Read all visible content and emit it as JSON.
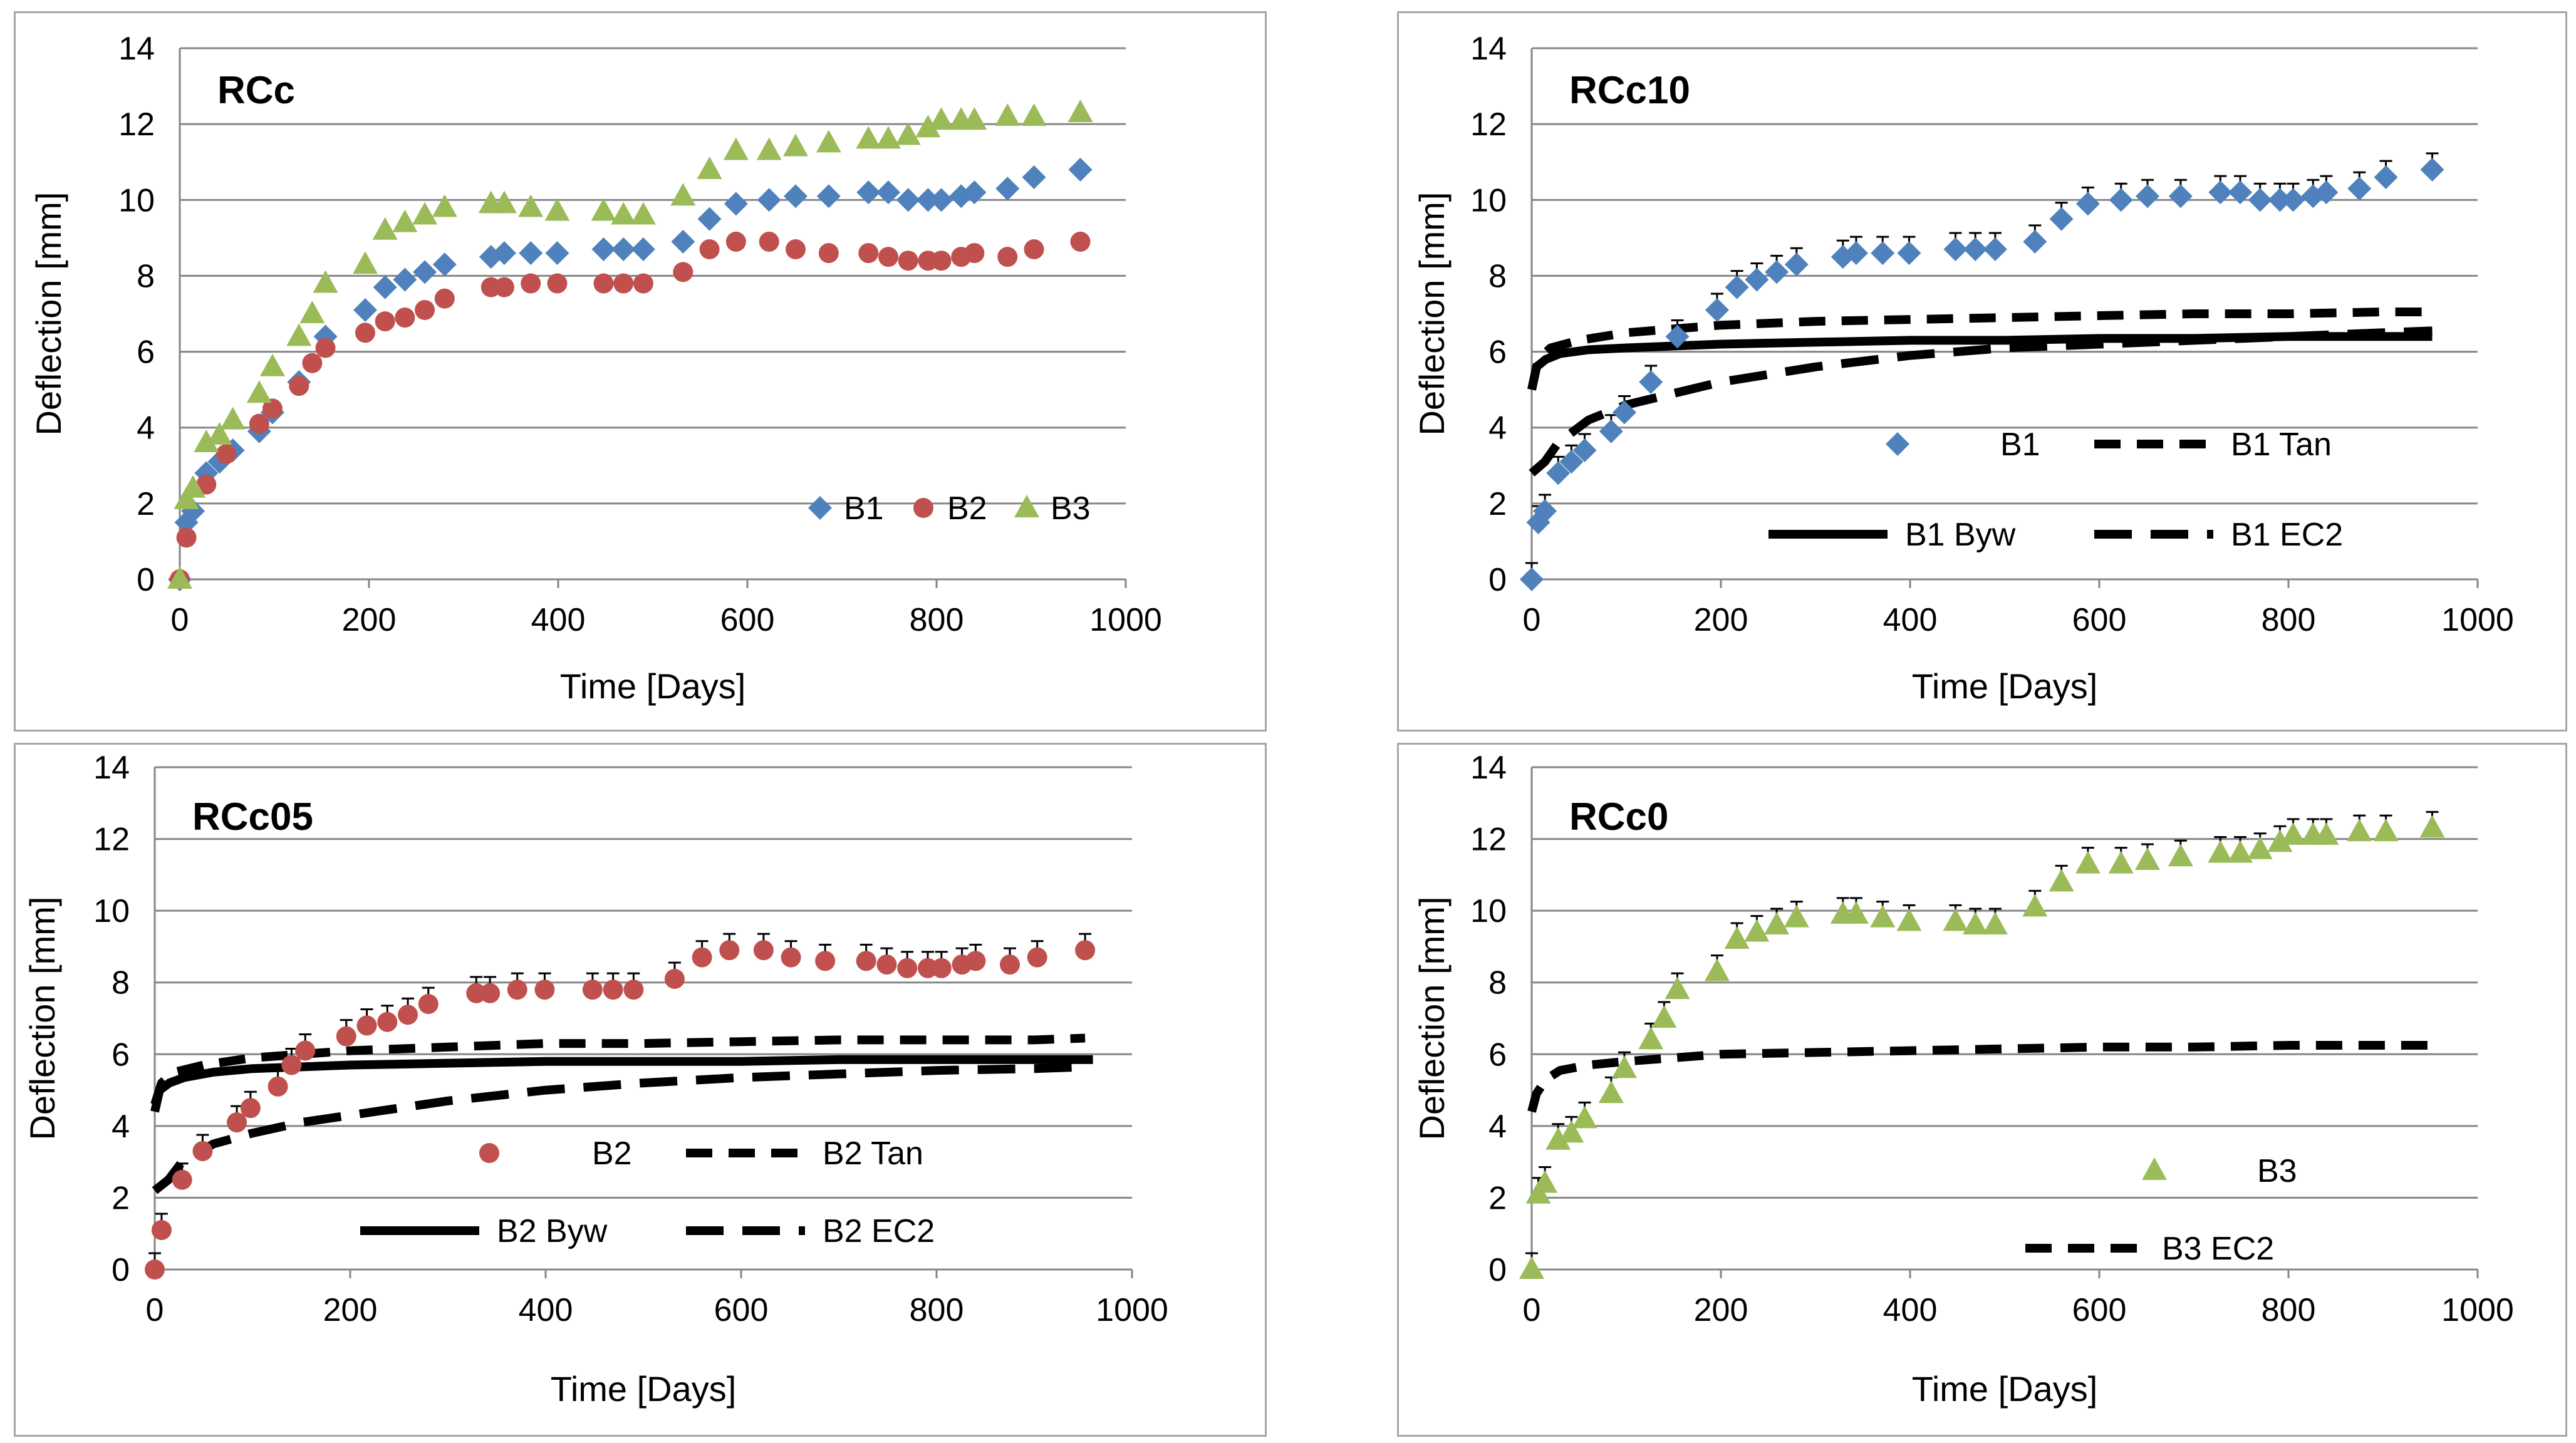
{
  "colors": {
    "B1": "#4f81bd",
    "B2": "#c0504d",
    "B3": "#9bbb59",
    "model": "#000000",
    "grid": "#868686"
  },
  "chart_data": [
    {
      "type": "scatter",
      "title": "RCc",
      "xlabel": "Time [Days]",
      "ylabel": "Deflection [mm]",
      "xlim": [
        0,
        1000
      ],
      "ylim": [
        0,
        14
      ],
      "xticks": [
        "0",
        "200",
        "400",
        "600",
        "800",
        "1000"
      ],
      "yticks": [
        "0",
        "2",
        "4",
        "6",
        "8",
        "10",
        "12",
        "14"
      ],
      "legend_layout": "row",
      "legend": [
        {
          "label": "B1",
          "series": "B1"
        },
        {
          "label": "B2",
          "series": "B2"
        },
        {
          "label": "B3",
          "series": "B3"
        }
      ],
      "series": [
        {
          "name": "B1",
          "kind": "marker",
          "marker": "diamond",
          "color": "B1",
          "x": [
            0,
            7,
            14,
            28,
            42,
            56,
            84,
            98,
            126,
            154,
            196,
            217,
            238,
            259,
            280,
            329,
            343,
            371,
            399,
            448,
            469,
            490,
            532,
            560,
            588,
            623,
            651,
            686,
            728,
            749,
            770,
            791,
            805,
            826,
            840,
            875,
            903,
            952
          ],
          "y": [
            0,
            1.5,
            1.8,
            2.8,
            3.1,
            3.4,
            3.9,
            4.4,
            5.2,
            6.4,
            7.1,
            7.7,
            7.9,
            8.1,
            8.3,
            8.5,
            8.6,
            8.6,
            8.6,
            8.7,
            8.7,
            8.7,
            8.9,
            9.5,
            9.9,
            10.0,
            10.1,
            10.1,
            10.2,
            10.2,
            10.0,
            10.0,
            10.0,
            10.1,
            10.2,
            10.3,
            10.6,
            10.8
          ]
        },
        {
          "name": "B2",
          "kind": "marker",
          "marker": "circle",
          "color": "B2",
          "x": [
            0,
            7,
            28,
            49,
            84,
            98,
            126,
            140,
            154,
            196,
            217,
            238,
            259,
            280,
            329,
            343,
            371,
            399,
            448,
            469,
            490,
            532,
            560,
            588,
            623,
            651,
            686,
            728,
            749,
            770,
            791,
            805,
            826,
            840,
            875,
            903,
            952
          ],
          "y": [
            0,
            1.1,
            2.5,
            3.3,
            4.1,
            4.5,
            5.1,
            5.7,
            6.1,
            6.5,
            6.8,
            6.9,
            7.1,
            7.4,
            7.7,
            7.7,
            7.8,
            7.8,
            7.8,
            7.8,
            7.8,
            8.1,
            8.7,
            8.9,
            8.9,
            8.7,
            8.6,
            8.6,
            8.5,
            8.4,
            8.4,
            8.4,
            8.5,
            8.6,
            8.5,
            8.7,
            8.9
          ]
        },
        {
          "name": "B3",
          "kind": "marker",
          "marker": "triangle",
          "color": "B3",
          "x": [
            0,
            7,
            14,
            28,
            42,
            56,
            84,
            98,
            126,
            140,
            154,
            196,
            217,
            238,
            259,
            280,
            329,
            343,
            371,
            399,
            448,
            469,
            490,
            532,
            560,
            588,
            623,
            651,
            686,
            728,
            749,
            770,
            791,
            805,
            826,
            840,
            875,
            903,
            952
          ],
          "y": [
            0,
            2.1,
            2.4,
            3.6,
            3.8,
            4.2,
            4.9,
            5.6,
            6.4,
            7.0,
            7.8,
            8.3,
            9.2,
            9.4,
            9.6,
            9.8,
            9.9,
            9.9,
            9.8,
            9.7,
            9.7,
            9.6,
            9.6,
            10.1,
            10.8,
            11.3,
            11.3,
            11.4,
            11.5,
            11.6,
            11.6,
            11.7,
            11.9,
            12.1,
            12.1,
            12.1,
            12.2,
            12.2,
            12.3
          ]
        }
      ]
    },
    {
      "type": "scatter",
      "title": "RCc10",
      "xlabel": "Time [Days]",
      "ylabel": "Deflection [mm]",
      "xlim": [
        0,
        1000
      ],
      "ylim": [
        0,
        14
      ],
      "xticks": [
        "0",
        "200",
        "400",
        "600",
        "800",
        "1000"
      ],
      "yticks": [
        "0",
        "2",
        "4",
        "6",
        "8",
        "10",
        "12",
        "14"
      ],
      "legend_layout": "grid2",
      "legend": [
        {
          "label": "B1",
          "series": "B1"
        },
        {
          "label": "B1 Tan",
          "series": "B1 Tan"
        },
        {
          "label": "B1 Byw",
          "series": "B1 Byw"
        },
        {
          "label": "B1 EC2",
          "series": "B1 EC2"
        }
      ],
      "series": [
        {
          "name": "B1",
          "kind": "marker",
          "marker": "diamond",
          "color": "B1",
          "errbar": true,
          "x": [
            0,
            7,
            14,
            28,
            42,
            56,
            84,
            98,
            126,
            154,
            196,
            217,
            238,
            259,
            280,
            329,
            343,
            371,
            399,
            448,
            469,
            490,
            532,
            560,
            588,
            623,
            651,
            686,
            728,
            749,
            770,
            791,
            805,
            826,
            840,
            875,
            903,
            952
          ],
          "y": [
            0,
            1.5,
            1.8,
            2.8,
            3.1,
            3.4,
            3.9,
            4.4,
            5.2,
            6.4,
            7.1,
            7.7,
            7.9,
            8.1,
            8.3,
            8.5,
            8.6,
            8.6,
            8.6,
            8.7,
            8.7,
            8.7,
            8.9,
            9.5,
            9.9,
            10.0,
            10.1,
            10.1,
            10.2,
            10.2,
            10.0,
            10.0,
            10.0,
            10.1,
            10.2,
            10.3,
            10.6,
            10.8
          ]
        },
        {
          "name": "B1 Tan",
          "kind": "line",
          "style": "dash",
          "color": "model",
          "x": [
            0,
            7,
            20,
            50,
            100,
            150,
            200,
            300,
            400,
            500,
            600,
            700,
            800,
            900,
            952
          ],
          "y": [
            5.0,
            5.8,
            6.1,
            6.3,
            6.5,
            6.6,
            6.7,
            6.8,
            6.85,
            6.9,
            6.95,
            7.0,
            7.0,
            7.05,
            7.05
          ]
        },
        {
          "name": "B1 Byw",
          "kind": "line",
          "style": "solid",
          "color": "model",
          "x": [
            0,
            5,
            15,
            30,
            60,
            100,
            200,
            300,
            400,
            500,
            600,
            700,
            800,
            900,
            952
          ],
          "y": [
            5.0,
            5.6,
            5.8,
            5.95,
            6.05,
            6.1,
            6.2,
            6.25,
            6.3,
            6.3,
            6.35,
            6.35,
            6.4,
            6.4,
            6.4
          ]
        },
        {
          "name": "B1 EC2",
          "kind": "line",
          "style": "dashlong",
          "color": "model",
          "x": [
            0,
            14,
            28,
            60,
            100,
            150,
            200,
            300,
            400,
            500,
            600,
            700,
            800,
            900,
            952
          ],
          "y": [
            2.8,
            3.1,
            3.6,
            4.2,
            4.6,
            4.9,
            5.2,
            5.6,
            5.9,
            6.1,
            6.2,
            6.3,
            6.4,
            6.5,
            6.55
          ]
        }
      ]
    },
    {
      "type": "scatter",
      "title": "RCc05",
      "xlabel": "Time [Days]",
      "ylabel": "Deflection [mm]",
      "xlim": [
        0,
        1000
      ],
      "ylim": [
        0,
        14
      ],
      "xticks": [
        "0",
        "200",
        "400",
        "600",
        "800",
        "1000"
      ],
      "yticks": [
        "0",
        "2",
        "4",
        "6",
        "8",
        "10",
        "12",
        "14"
      ],
      "legend_layout": "grid2",
      "legend": [
        {
          "label": "B2",
          "series": "B2"
        },
        {
          "label": "B2 Tan",
          "series": "B2 Tan"
        },
        {
          "label": "B2 Byw",
          "series": "B2 Byw"
        },
        {
          "label": "B2 EC2",
          "series": "B2 EC2"
        }
      ],
      "series": [
        {
          "name": "B2",
          "kind": "marker",
          "marker": "circle",
          "color": "B2",
          "errbar": true,
          "x": [
            0,
            7,
            28,
            49,
            84,
            98,
            126,
            140,
            154,
            196,
            217,
            238,
            259,
            280,
            329,
            343,
            371,
            399,
            448,
            469,
            490,
            532,
            560,
            588,
            623,
            651,
            686,
            728,
            749,
            770,
            791,
            805,
            826,
            840,
            875,
            903,
            952
          ],
          "y": [
            0,
            1.1,
            2.5,
            3.3,
            4.1,
            4.5,
            5.1,
            5.7,
            6.1,
            6.5,
            6.8,
            6.9,
            7.1,
            7.4,
            7.7,
            7.7,
            7.8,
            7.8,
            7.8,
            7.8,
            7.8,
            8.1,
            8.7,
            8.9,
            8.9,
            8.7,
            8.6,
            8.6,
            8.5,
            8.4,
            8.4,
            8.4,
            8.5,
            8.6,
            8.5,
            8.7,
            8.9
          ]
        },
        {
          "name": "B2 Tan",
          "kind": "line",
          "style": "dash",
          "color": "model",
          "x": [
            0,
            7,
            20,
            50,
            100,
            150,
            200,
            300,
            400,
            500,
            600,
            700,
            800,
            900,
            952
          ],
          "y": [
            4.6,
            5.2,
            5.5,
            5.7,
            5.9,
            6.0,
            6.1,
            6.2,
            6.3,
            6.3,
            6.35,
            6.4,
            6.4,
            6.4,
            6.45
          ]
        },
        {
          "name": "B2 Byw",
          "kind": "line",
          "style": "solid",
          "color": "model",
          "x": [
            0,
            5,
            15,
            30,
            60,
            100,
            200,
            300,
            400,
            500,
            600,
            700,
            800,
            900,
            960
          ],
          "y": [
            4.4,
            5.0,
            5.2,
            5.35,
            5.5,
            5.6,
            5.7,
            5.75,
            5.8,
            5.8,
            5.8,
            5.85,
            5.85,
            5.85,
            5.85
          ]
        },
        {
          "name": "B2 EC2",
          "kind": "line",
          "style": "dashlong",
          "color": "model",
          "x": [
            0,
            14,
            28,
            60,
            100,
            150,
            200,
            300,
            400,
            500,
            600,
            700,
            800,
            900,
            952
          ],
          "y": [
            2.2,
            2.5,
            3.0,
            3.5,
            3.8,
            4.1,
            4.3,
            4.7,
            5.0,
            5.2,
            5.35,
            5.45,
            5.55,
            5.6,
            5.65
          ]
        }
      ]
    },
    {
      "type": "scatter",
      "title": "RCc0",
      "xlabel": "Time [Days]",
      "ylabel": "Deflection [mm]",
      "xlim": [
        0,
        1000
      ],
      "ylim": [
        0,
        14
      ],
      "xticks": [
        "0",
        "200",
        "400",
        "600",
        "800",
        "1000"
      ],
      "yticks": [
        "0",
        "2",
        "4",
        "6",
        "8",
        "10",
        "12",
        "14"
      ],
      "legend_layout": "column",
      "legend": [
        {
          "label": "B3",
          "series": "B3"
        },
        {
          "label": "B3 EC2",
          "series": "B3 EC2"
        }
      ],
      "series": [
        {
          "name": "B3",
          "kind": "marker",
          "marker": "triangle",
          "color": "B3",
          "errbar": true,
          "x": [
            0,
            7,
            14,
            28,
            42,
            56,
            84,
            98,
            126,
            140,
            154,
            196,
            217,
            238,
            259,
            280,
            329,
            343,
            371,
            399,
            448,
            469,
            490,
            532,
            560,
            588,
            623,
            651,
            686,
            728,
            749,
            770,
            791,
            805,
            826,
            840,
            875,
            903,
            952
          ],
          "y": [
            0,
            2.1,
            2.4,
            3.6,
            3.8,
            4.2,
            4.9,
            5.6,
            6.4,
            7.0,
            7.8,
            8.3,
            9.2,
            9.4,
            9.6,
            9.8,
            9.9,
            9.9,
            9.8,
            9.7,
            9.7,
            9.6,
            9.6,
            10.1,
            10.8,
            11.3,
            11.3,
            11.4,
            11.5,
            11.6,
            11.6,
            11.7,
            11.9,
            12.1,
            12.1,
            12.1,
            12.2,
            12.2,
            12.3
          ]
        },
        {
          "name": "B3 EC2",
          "kind": "line",
          "style": "dash",
          "color": "model",
          "x": [
            0,
            5,
            15,
            30,
            60,
            100,
            150,
            200,
            300,
            400,
            500,
            600,
            700,
            800,
            900,
            952
          ],
          "y": [
            4.4,
            4.9,
            5.3,
            5.55,
            5.7,
            5.8,
            5.9,
            6.0,
            6.05,
            6.1,
            6.15,
            6.2,
            6.2,
            6.25,
            6.25,
            6.25
          ]
        }
      ]
    }
  ]
}
